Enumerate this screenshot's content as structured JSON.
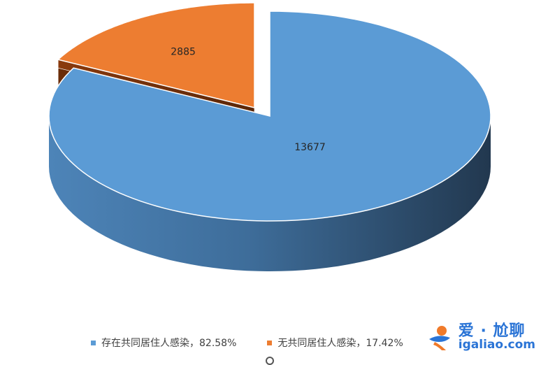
{
  "chart_data": {
    "type": "pie",
    "categories": [
      "存在共同居住人感染",
      "无共同居住人感染"
    ],
    "values": [
      13677,
      2885
    ],
    "legend_labels": [
      "存在共同居住人感染，82.58%",
      "无共同居住人感染，17.42%"
    ],
    "data_labels": [
      "13677",
      "2885"
    ],
    "colors": [
      "#5b9bd5",
      "#ed7d31"
    ],
    "legend_position": "bottom",
    "exploded_slice": "无共同居住人感染",
    "style": "3d"
  },
  "watermark": {
    "brand": "爱 · 尬聊",
    "domain": "igaliao.com"
  }
}
